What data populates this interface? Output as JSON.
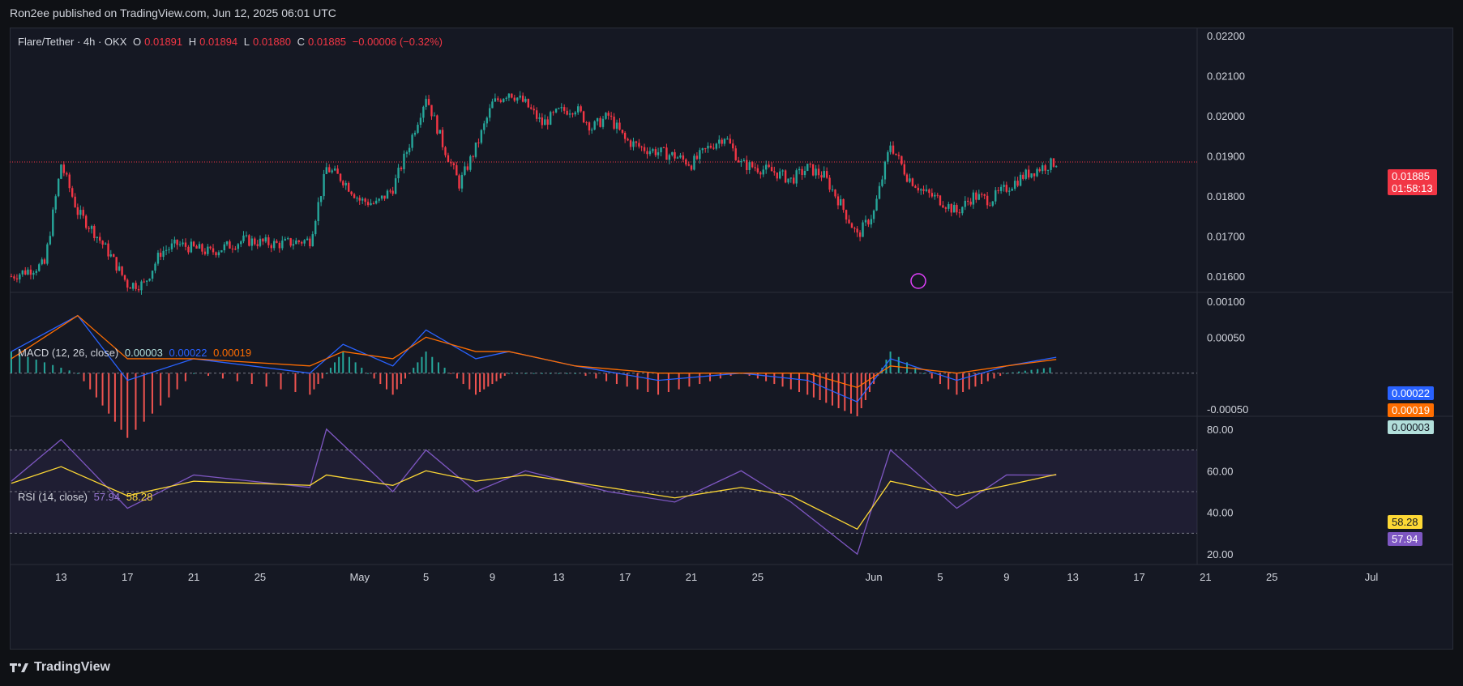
{
  "header": {
    "publisher_line": "Ron2ee published on TradingView.com, Jun 12, 2025 06:01 UTC",
    "footer_brand": "TradingView"
  },
  "colors": {
    "up": "#26a69a",
    "down": "#f23645",
    "macd": "#2962ff",
    "signal": "#ff6d00",
    "rsi": "#7e57c2",
    "rsi_ma": "#fdd835"
  },
  "price_pane": {
    "symbol": "Flare/Tether · 4h · OKX",
    "o_label": "O",
    "o": "0.01891",
    "h_label": "H",
    "h": "0.01894",
    "l_label": "L",
    "l": "0.01880",
    "c_label": "C",
    "c": "0.01885",
    "change": "−0.00006 (−0.32%)",
    "last_price": "0.01885",
    "countdown": "01:58:13",
    "ticks": [
      "0.02200",
      "0.02100",
      "0.02000",
      "0.01900",
      "0.01800",
      "0.01700",
      "0.01600"
    ]
  },
  "macd_pane": {
    "label": "MACD (12, 26, close)",
    "hist": "0.00003",
    "macd": "0.00022",
    "signal": "0.00019",
    "ticks": [
      "0.00100",
      "0.00050",
      "-0.00050"
    ],
    "tag_macd": "0.00022",
    "tag_signal": "0.00019",
    "tag_hist": "0.00003"
  },
  "rsi_pane": {
    "label": "RSI (14, close)",
    "rsi": "57.94",
    "rsi_ma": "58.28",
    "ticks": [
      "80.00",
      "60.00",
      "40.00",
      "20.00"
    ],
    "tag_ma": "58.28",
    "tag_rsi": "57.94"
  },
  "x_axis": {
    "labels": [
      "13",
      "17",
      "21",
      "25",
      "May",
      "5",
      "9",
      "13",
      "17",
      "21",
      "25",
      "Jun",
      "5",
      "9",
      "13",
      "17",
      "21",
      "25",
      "Jul"
    ]
  },
  "chart_data": {
    "type": "line",
    "title": "Flare/Tether · 4h · OKX",
    "y_range": [
      0.0156,
      0.0222
    ],
    "close_path_4h": [
      {
        "date": "2025-04-10",
        "close": 0.016
      },
      {
        "date": "2025-04-12",
        "close": 0.0163
      },
      {
        "date": "2025-04-13",
        "close": 0.0188
      },
      {
        "date": "2025-04-14",
        "close": 0.0176
      },
      {
        "date": "2025-04-15",
        "close": 0.0171
      },
      {
        "date": "2025-04-16",
        "close": 0.0165
      },
      {
        "date": "2025-04-17",
        "close": 0.0158
      },
      {
        "date": "2025-04-18",
        "close": 0.0158
      },
      {
        "date": "2025-04-19",
        "close": 0.0166
      },
      {
        "date": "2025-04-20",
        "close": 0.0168
      },
      {
        "date": "2025-04-22",
        "close": 0.0166
      },
      {
        "date": "2025-04-24",
        "close": 0.0169
      },
      {
        "date": "2025-04-26",
        "close": 0.0168
      },
      {
        "date": "2025-04-28",
        "close": 0.0169
      },
      {
        "date": "2025-04-29",
        "close": 0.0187
      },
      {
        "date": "2025-04-30",
        "close": 0.0184
      },
      {
        "date": "2025-05-01",
        "close": 0.0179
      },
      {
        "date": "2025-05-02",
        "close": 0.0178
      },
      {
        "date": "2025-05-03",
        "close": 0.0182
      },
      {
        "date": "2025-05-04",
        "close": 0.0193
      },
      {
        "date": "2025-05-05",
        "close": 0.0205
      },
      {
        "date": "2025-05-06",
        "close": 0.0193
      },
      {
        "date": "2025-05-07",
        "close": 0.0183
      },
      {
        "date": "2025-05-08",
        "close": 0.0192
      },
      {
        "date": "2025-05-09",
        "close": 0.0203
      },
      {
        "date": "2025-05-10",
        "close": 0.0206
      },
      {
        "date": "2025-05-11",
        "close": 0.0203
      },
      {
        "date": "2025-05-12",
        "close": 0.0198
      },
      {
        "date": "2025-05-13",
        "close": 0.0201
      },
      {
        "date": "2025-05-14",
        "close": 0.0202
      },
      {
        "date": "2025-05-15",
        "close": 0.0197
      },
      {
        "date": "2025-05-16",
        "close": 0.02
      },
      {
        "date": "2025-05-17",
        "close": 0.0194
      },
      {
        "date": "2025-05-18",
        "close": 0.0192
      },
      {
        "date": "2025-05-19",
        "close": 0.0191
      },
      {
        "date": "2025-05-20",
        "close": 0.019
      },
      {
        "date": "2025-05-21",
        "close": 0.0188
      },
      {
        "date": "2025-05-22",
        "close": 0.0192
      },
      {
        "date": "2025-05-23",
        "close": 0.0195
      },
      {
        "date": "2025-05-24",
        "close": 0.0188
      },
      {
        "date": "2025-05-25",
        "close": 0.0187
      },
      {
        "date": "2025-05-26",
        "close": 0.0186
      },
      {
        "date": "2025-05-27",
        "close": 0.0184
      },
      {
        "date": "2025-05-28",
        "close": 0.0187
      },
      {
        "date": "2025-05-29",
        "close": 0.0185
      },
      {
        "date": "2025-05-30",
        "close": 0.0178
      },
      {
        "date": "2025-05-31",
        "close": 0.017
      },
      {
        "date": "2025-06-01",
        "close": 0.0176
      },
      {
        "date": "2025-06-02",
        "close": 0.0193
      },
      {
        "date": "2025-06-03",
        "close": 0.0185
      },
      {
        "date": "2025-06-04",
        "close": 0.0181
      },
      {
        "date": "2025-06-05",
        "close": 0.0179
      },
      {
        "date": "2025-06-06",
        "close": 0.0176
      },
      {
        "date": "2025-06-07",
        "close": 0.018
      },
      {
        "date": "2025-06-08",
        "close": 0.0179
      },
      {
        "date": "2025-06-09",
        "close": 0.0182
      },
      {
        "date": "2025-06-10",
        "close": 0.0185
      },
      {
        "date": "2025-06-11",
        "close": 0.0187
      },
      {
        "date": "2025-06-12",
        "close": 0.01885
      }
    ],
    "macd": {
      "series": [
        "MACD",
        "Signal",
        "Histogram"
      ],
      "y_range": [
        -0.0006,
        0.0011
      ],
      "points": [
        {
          "date": "2025-04-10",
          "macd": 0.0003,
          "signal": 0.0002
        },
        {
          "date": "2025-04-14",
          "macd": 0.0008,
          "signal": 0.0008
        },
        {
          "date": "2025-04-17",
          "macd": -0.0001,
          "signal": 0.0002
        },
        {
          "date": "2025-04-21",
          "macd": 0.0002,
          "signal": 0.0002
        },
        {
          "date": "2025-04-28",
          "macd": 0.0,
          "signal": 0.0001
        },
        {
          "date": "2025-04-30",
          "macd": 0.0004,
          "signal": 0.0003
        },
        {
          "date": "2025-05-03",
          "macd": 0.0001,
          "signal": 0.0002
        },
        {
          "date": "2025-05-05",
          "macd": 0.0006,
          "signal": 0.0005
        },
        {
          "date": "2025-05-08",
          "macd": 0.0002,
          "signal": 0.0003
        },
        {
          "date": "2025-05-10",
          "macd": 0.0003,
          "signal": 0.0003
        },
        {
          "date": "2025-05-14",
          "macd": 0.0001,
          "signal": 0.0001
        },
        {
          "date": "2025-05-19",
          "macd": -0.0001,
          "signal": 0.0
        },
        {
          "date": "2025-05-24",
          "macd": 0.0,
          "signal": 0.0
        },
        {
          "date": "2025-05-28",
          "macd": -0.0001,
          "signal": 0.0
        },
        {
          "date": "2025-05-31",
          "macd": -0.0004,
          "signal": -0.0002
        },
        {
          "date": "2025-06-02",
          "macd": 0.0002,
          "signal": 0.0001
        },
        {
          "date": "2025-06-06",
          "macd": -0.0001,
          "signal": 0.0
        },
        {
          "date": "2025-06-09",
          "macd": 0.0001,
          "signal": 0.0001
        },
        {
          "date": "2025-06-12",
          "macd": 0.00022,
          "signal": 0.00019
        }
      ]
    },
    "rsi": {
      "series": [
        "RSI",
        "RSI MA"
      ],
      "y_range": [
        15,
        85
      ],
      "bands": [
        70,
        50,
        30
      ],
      "points": [
        {
          "date": "2025-04-10",
          "rsi": 55,
          "ma": 54
        },
        {
          "date": "2025-04-13",
          "rsi": 75,
          "ma": 62
        },
        {
          "date": "2025-04-17",
          "rsi": 42,
          "ma": 48
        },
        {
          "date": "2025-04-21",
          "rsi": 58,
          "ma": 55
        },
        {
          "date": "2025-04-28",
          "rsi": 52,
          "ma": 53
        },
        {
          "date": "2025-04-29",
          "rsi": 80,
          "ma": 58
        },
        {
          "date": "2025-05-03",
          "rsi": 50,
          "ma": 53
        },
        {
          "date": "2025-05-05",
          "rsi": 70,
          "ma": 60
        },
        {
          "date": "2025-05-08",
          "rsi": 50,
          "ma": 55
        },
        {
          "date": "2025-05-11",
          "rsi": 60,
          "ma": 58
        },
        {
          "date": "2025-05-16",
          "rsi": 50,
          "ma": 52
        },
        {
          "date": "2025-05-20",
          "rsi": 45,
          "ma": 47
        },
        {
          "date": "2025-05-24",
          "rsi": 60,
          "ma": 52
        },
        {
          "date": "2025-05-27",
          "rsi": 45,
          "ma": 48
        },
        {
          "date": "2025-05-31",
          "rsi": 20,
          "ma": 32
        },
        {
          "date": "2025-06-02",
          "rsi": 70,
          "ma": 55
        },
        {
          "date": "2025-06-06",
          "rsi": 42,
          "ma": 48
        },
        {
          "date": "2025-06-09",
          "rsi": 58,
          "ma": 53
        },
        {
          "date": "2025-06-12",
          "rsi": 57.94,
          "ma": 58.28
        }
      ]
    }
  }
}
